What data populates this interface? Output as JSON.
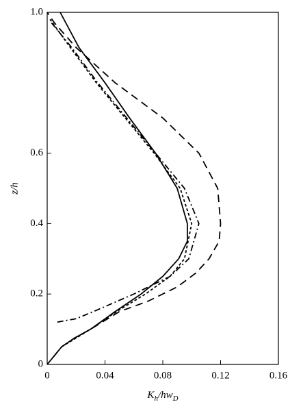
{
  "chart_data": {
    "type": "line",
    "xlabel": [
      "K",
      "h",
      "/hw",
      "D"
    ],
    "ylabel": "z/h",
    "xlim": [
      0,
      0.16
    ],
    "xticks": [
      0,
      0.04,
      0.08,
      0.12,
      0.16
    ],
    "ylim": [
      0,
      1
    ],
    "yticks": [
      0,
      0.2,
      0.4,
      0.6,
      {
        "value": 1,
        "label": "1.0"
      }
    ],
    "series": [
      {
        "color": "#000000",
        "dash": "none",
        "x": [
          0,
          0.004,
          0.01,
          0.019,
          0.03,
          0.047,
          0.065,
          0.08,
          0.091,
          0.097,
          0.097,
          0.09,
          0.075,
          0.057,
          0.04,
          0.022,
          0.009
        ],
        "values": [
          0,
          0.02,
          0.05,
          0.075,
          0.1,
          0.15,
          0.2,
          0.25,
          0.3,
          0.35,
          0.4,
          0.5,
          0.6,
          0.7,
          0.8,
          0.9,
          1.0
        ]
      },
      {
        "color": "#000000",
        "dash": "11,7",
        "x": [
          0.004,
          0.01,
          0.019,
          0.03,
          0.05,
          0.07,
          0.09,
          0.103,
          0.112,
          0.119,
          0.12,
          0.118,
          0.105,
          0.08,
          0.047,
          0.02,
          0.005,
          0
        ],
        "values": [
          0.02,
          0.05,
          0.075,
          0.1,
          0.15,
          0.18,
          0.22,
          0.26,
          0.3,
          0.35,
          0.4,
          0.5,
          0.6,
          0.7,
          0.8,
          0.9,
          0.97,
          1.0
        ]
      },
      {
        "color": "#000000",
        "dash": "9,4,2,4",
        "x": [
          0.007,
          0.02,
          0.032,
          0.06,
          0.085,
          0.098,
          0.105,
          0.095,
          0.075,
          0.055,
          0.035,
          0.017,
          0.003
        ],
        "values": [
          0.12,
          0.13,
          0.15,
          0.2,
          0.25,
          0.3,
          0.4,
          0.5,
          0.6,
          0.7,
          0.8,
          0.9,
          0.97
        ]
      },
      {
        "color": "#000000",
        "dash": "4,3",
        "x": [
          0.01,
          0.03,
          0.048,
          0.068,
          0.085,
          0.095,
          0.1,
          0.092,
          0.074,
          0.054,
          0.034,
          0.016,
          0.002
        ],
        "values": [
          0.05,
          0.1,
          0.15,
          0.2,
          0.25,
          0.3,
          0.4,
          0.5,
          0.6,
          0.7,
          0.8,
          0.9,
          0.98
        ]
      }
    ]
  }
}
